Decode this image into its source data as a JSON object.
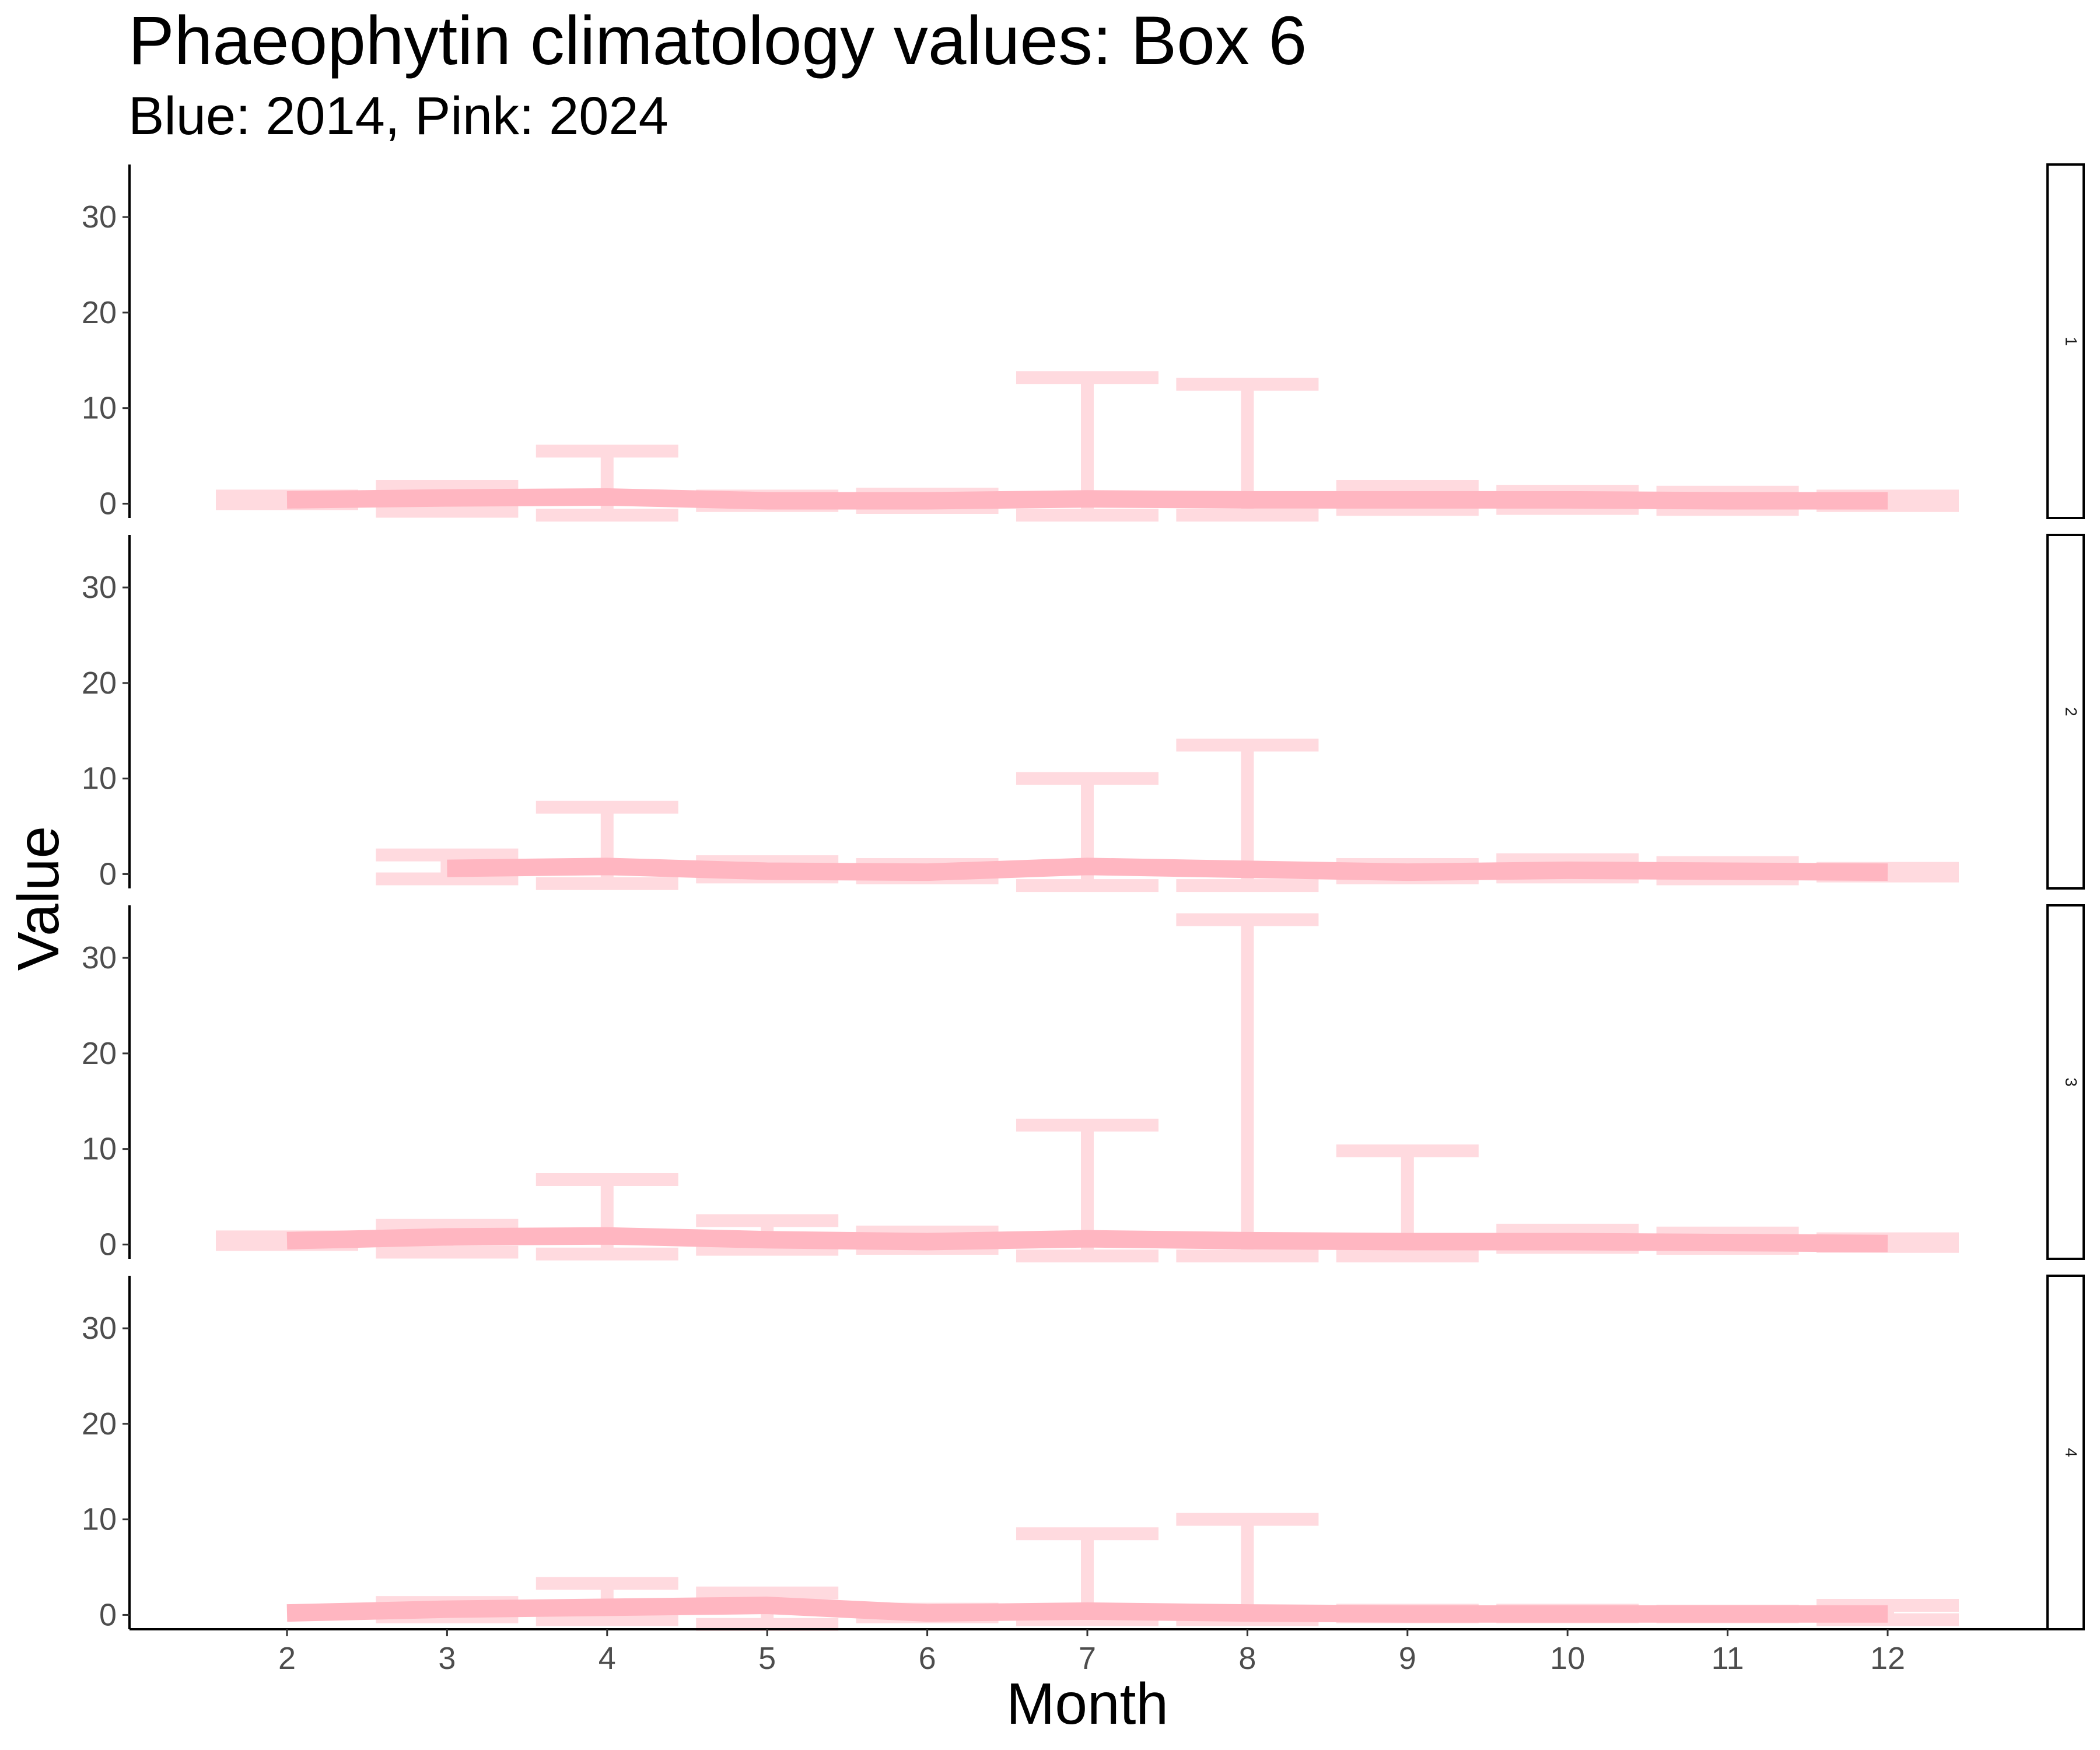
{
  "chart_data": {
    "type": "line",
    "title": "Phaeophytin climatology values: Box 6",
    "subtitle": "Blue: 2014, Pink: 2024",
    "xlabel": "Month",
    "ylabel": "Value",
    "x_ticks": [
      2,
      3,
      4,
      5,
      6,
      7,
      8,
      9,
      10,
      11,
      12
    ],
    "y_ticks": [
      0,
      10,
      20,
      30
    ],
    "ylim": [
      -1.5,
      35.5
    ],
    "xlim": [
      1,
      13
    ],
    "grid": false,
    "series_color": "#ffb6c1",
    "facet_strip": "right",
    "facets": [
      {
        "label": "1",
        "line": {
          "x": [
            2,
            3,
            4,
            5,
            6,
            7,
            8,
            9,
            10,
            11,
            12
          ],
          "y": [
            0.4,
            0.6,
            0.7,
            0.3,
            0.3,
            0.5,
            0.4,
            0.4,
            0.4,
            0.3,
            0.3
          ]
        },
        "errorbars": [
          {
            "x": 2,
            "ymin": 0.0,
            "ymax": 0.8
          },
          {
            "x": 3,
            "ymin": -0.8,
            "ymax": 1.8
          },
          {
            "x": 4,
            "ymin": -1.2,
            "ymax": 5.5
          },
          {
            "x": 5,
            "ymin": -0.2,
            "ymax": 0.8
          },
          {
            "x": 6,
            "ymin": -0.4,
            "ymax": 1.0
          },
          {
            "x": 7,
            "ymin": -1.2,
            "ymax": 13.2
          },
          {
            "x": 8,
            "ymin": -1.2,
            "ymax": 12.5
          },
          {
            "x": 9,
            "ymin": -0.6,
            "ymax": 1.8
          },
          {
            "x": 10,
            "ymin": -0.5,
            "ymax": 1.3
          },
          {
            "x": 11,
            "ymin": -0.6,
            "ymax": 1.2
          },
          {
            "x": 12,
            "ymin": -0.2,
            "ymax": 0.8
          }
        ]
      },
      {
        "label": "2",
        "line": {
          "x": [
            3,
            4,
            5,
            6,
            7,
            8,
            9,
            10,
            11,
            12
          ],
          "y": [
            0.6,
            0.8,
            0.3,
            0.2,
            0.8,
            0.5,
            0.2,
            0.4,
            0.3,
            0.2
          ]
        },
        "errorbars": [
          {
            "x": 3,
            "ymin": -0.5,
            "ymax": 2.0
          },
          {
            "x": 4,
            "ymin": -1.0,
            "ymax": 7.0
          },
          {
            "x": 5,
            "ymin": -0.3,
            "ymax": 1.3
          },
          {
            "x": 6,
            "ymin": -0.4,
            "ymax": 1.0
          },
          {
            "x": 7,
            "ymin": -1.2,
            "ymax": 10.0
          },
          {
            "x": 8,
            "ymin": -1.2,
            "ymax": 13.5
          },
          {
            "x": 9,
            "ymin": -0.4,
            "ymax": 1.0
          },
          {
            "x": 10,
            "ymin": -0.3,
            "ymax": 1.5
          },
          {
            "x": 11,
            "ymin": -0.5,
            "ymax": 1.2
          },
          {
            "x": 12,
            "ymin": -0.2,
            "ymax": 0.6
          }
        ]
      },
      {
        "label": "3",
        "line": {
          "x": [
            2,
            3,
            4,
            5,
            6,
            7,
            8,
            9,
            10,
            11,
            12
          ],
          "y": [
            0.4,
            0.8,
            0.9,
            0.5,
            0.3,
            0.6,
            0.4,
            0.3,
            0.3,
            0.2,
            0.1
          ]
        },
        "errorbars": [
          {
            "x": 2,
            "ymin": 0.0,
            "ymax": 0.8
          },
          {
            "x": 3,
            "ymin": -0.8,
            "ymax": 2.0
          },
          {
            "x": 4,
            "ymin": -1.0,
            "ymax": 6.8
          },
          {
            "x": 5,
            "ymin": -0.5,
            "ymax": 2.5
          },
          {
            "x": 6,
            "ymin": -0.4,
            "ymax": 1.3
          },
          {
            "x": 7,
            "ymin": -1.2,
            "ymax": 12.5
          },
          {
            "x": 8,
            "ymin": -1.2,
            "ymax": 34.0
          },
          {
            "x": 9,
            "ymin": -1.2,
            "ymax": 9.8
          },
          {
            "x": 10,
            "ymin": -0.3,
            "ymax": 1.5
          },
          {
            "x": 11,
            "ymin": -0.4,
            "ymax": 1.2
          },
          {
            "x": 12,
            "ymin": -0.2,
            "ymax": 0.6
          }
        ]
      },
      {
        "label": "4",
        "line": {
          "x": [
            2,
            3,
            4,
            5,
            6,
            7,
            8,
            9,
            10,
            11,
            12
          ],
          "y": [
            0.2,
            0.6,
            0.8,
            1.0,
            0.2,
            0.4,
            0.2,
            0.1,
            0.1,
            0.1,
            0.1
          ]
        },
        "errorbars": [
          {
            "x": 3,
            "ymin": -0.2,
            "ymax": 1.3
          },
          {
            "x": 4,
            "ymin": -0.5,
            "ymax": 3.3
          },
          {
            "x": 5,
            "ymin": -1.0,
            "ymax": 2.3
          },
          {
            "x": 6,
            "ymin": -0.2,
            "ymax": 0.6
          },
          {
            "x": 7,
            "ymin": -0.5,
            "ymax": 8.5
          },
          {
            "x": 8,
            "ymin": -0.5,
            "ymax": 10.0
          },
          {
            "x": 9,
            "ymin": -0.2,
            "ymax": 0.5
          },
          {
            "x": 10,
            "ymin": -0.2,
            "ymax": 0.5
          },
          {
            "x": 11,
            "ymin": -0.2,
            "ymax": 0.4
          },
          {
            "x": 12,
            "ymin": -0.5,
            "ymax": 1.0
          }
        ]
      }
    ]
  }
}
